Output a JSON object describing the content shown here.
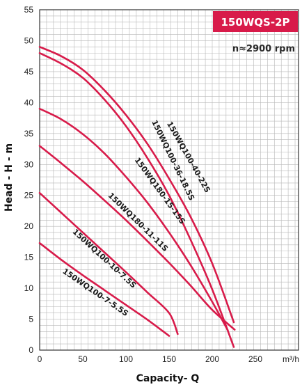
{
  "chart_data": {
    "type": "line",
    "model": "150WQS-2P",
    "speed_label": "n≈2900 rpm",
    "xlabel": "Capacity- Q",
    "xunit": "m³/h",
    "ylabel": "Head - H - m",
    "xlim": [
      0,
      250
    ],
    "ylim": [
      0,
      55
    ],
    "x_ticks": [
      0,
      50,
      100,
      150,
      200,
      250
    ],
    "y_ticks": [
      0,
      5,
      10,
      15,
      20,
      25,
      30,
      35,
      40,
      45,
      50,
      55
    ],
    "grid": true,
    "colors": {
      "curve": "#d81b4a",
      "badge": "#d81b4a",
      "grid": "#b8b8b8",
      "frame": "#333333"
    },
    "series": [
      {
        "name": "150WQ100-40-22S",
        "x": [
          0,
          25,
          50,
          75,
          100,
          125,
          150,
          175,
          200,
          225
        ],
        "y": [
          49,
          47.5,
          45.3,
          42,
          38,
          33.3,
          27.7,
          21.5,
          14,
          4.5
        ]
      },
      {
        "name": "150WQ100-36-18.5S",
        "x": [
          0,
          25,
          50,
          75,
          100,
          125,
          150,
          175,
          200,
          225
        ],
        "y": [
          48,
          46.3,
          44,
          40.5,
          36.2,
          31,
          25,
          17.8,
          9.8,
          0.5
        ]
      },
      {
        "name": "150WQ180-15-15S",
        "x": [
          0,
          25,
          50,
          75,
          100,
          125,
          150,
          175,
          200,
          218
        ],
        "y": [
          39,
          37.3,
          34.9,
          31.8,
          28,
          23.8,
          19,
          13.7,
          7.8,
          3.2
        ]
      },
      {
        "name": "150WQ180-11-11S",
        "x": [
          0,
          25,
          50,
          75,
          100,
          125,
          150,
          175,
          200,
          226
        ],
        "y": [
          33,
          30.2,
          27.3,
          24.2,
          21,
          17.6,
          14.1,
          10.4,
          6.5,
          3.3
        ]
      },
      {
        "name": "150WQ100-10-7.5S",
        "x": [
          0,
          25,
          50,
          75,
          100,
          125,
          150,
          160
        ],
        "y": [
          25.4,
          22.2,
          19,
          15.8,
          12.6,
          9.3,
          6.0,
          2.6
        ]
      },
      {
        "name": "150WQ100-7-5.5S",
        "x": [
          0,
          25,
          50,
          75,
          100,
          125,
          150
        ],
        "y": [
          17.3,
          14.6,
          12.1,
          9.7,
          7.3,
          4.9,
          2.3
        ]
      }
    ],
    "curve_labels": [
      {
        "series": "150WQ100-40-22S",
        "text": "150WQ100-40-22S",
        "at": [
          170,
          31
        ]
      },
      {
        "series": "150WQ100-36-18.5S",
        "text": "150WQ100-36-18.5S",
        "at": [
          152,
          30.5
        ]
      },
      {
        "series": "150WQ180-15-15S",
        "text": "150WQ180-15-15S",
        "at": [
          137,
          25.5
        ]
      },
      {
        "series": "150WQ180-11-11S",
        "text": "150WQ180-11-11S",
        "at": [
          112,
          20.4
        ]
      },
      {
        "series": "150WQ100-10-7.5S",
        "text": "150WQ100-10-7.5S",
        "at": [
          73,
          14.5
        ]
      },
      {
        "series": "150WQ100-7-5.5S",
        "text": "150WQ100-7-5.5S",
        "at": [
          63,
          9.0
        ]
      }
    ]
  }
}
